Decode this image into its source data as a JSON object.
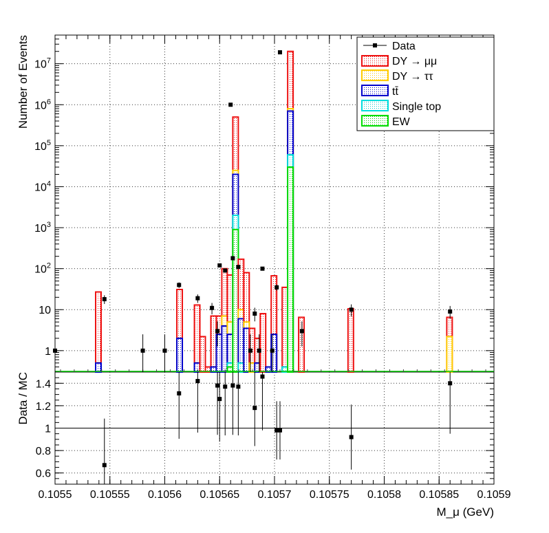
{
  "chart_data": {
    "type": "bar",
    "upper_panel": {
      "ylabel": "Number of Events",
      "yscale": "log",
      "ylim": [
        0.3,
        50000000
      ],
      "y_tick_labels": [
        "1",
        "10",
        "10^2",
        "10^3",
        "10^4",
        "10^5",
        "10^6",
        "10^7"
      ],
      "grid": true
    },
    "lower_panel": {
      "ylabel": "Data / MC",
      "ylim": [
        0.5,
        1.5
      ],
      "y_tick_labels": [
        "0.6",
        "0.8",
        "1",
        "1.2",
        "1.4"
      ],
      "reference_line": 1,
      "grid": true
    },
    "xlabel": "M_μ (GeV)",
    "xlim": [
      0.1055,
      0.1059
    ],
    "x_tick_labels": [
      "0.1055",
      "0.10555",
      "0.1056",
      "0.10565",
      "0.1057",
      "0.10575",
      "0.1058",
      "0.10585",
      "0.1059"
    ],
    "legend": {
      "placement": "top-right",
      "entries": [
        {
          "name": "Data",
          "style": "marker",
          "color": "#000000"
        },
        {
          "name": "DY → μμ",
          "style": "box",
          "color": "#ee1111"
        },
        {
          "name": "DY → ττ",
          "style": "box",
          "color": "#ffcc00"
        },
        {
          "name": "tt̄",
          "style": "box",
          "color": "#0000cc"
        },
        {
          "name": "Single top",
          "style": "box",
          "color": "#00dddd"
        },
        {
          "name": "EW",
          "style": "box",
          "color": "#00dd00"
        }
      ]
    },
    "stacks": [
      {
        "x0": 0.105537,
        "x1": 0.105542,
        "ew": 0,
        "st": 0,
        "tt": 0.5,
        "dytt": 0.5,
        "dymm": 27
      },
      {
        "x0": 0.105611,
        "x1": 0.105616,
        "ew": 0,
        "st": 0.3,
        "tt": 2.0,
        "dytt": 2.0,
        "dymm": 31
      },
      {
        "x0": 0.105627,
        "x1": 0.105632,
        "ew": 0,
        "st": 0,
        "tt": 0.5,
        "dytt": 0.5,
        "dymm": 13
      },
      {
        "x0": 0.105632,
        "x1": 0.105637,
        "ew": 0,
        "st": 0,
        "tt": 0,
        "dytt": 0,
        "dymm": 2.2
      },
      {
        "x0": 0.105637,
        "x1": 0.105642,
        "ew": 0,
        "st": 0,
        "tt": 0,
        "dytt": 0,
        "dymm": 0.4
      },
      {
        "x0": 0.105642,
        "x1": 0.105647,
        "ew": 0,
        "st": 0,
        "tt": 0.4,
        "dytt": 0.4,
        "dymm": 7
      },
      {
        "x0": 0.105647,
        "x1": 0.105652,
        "ew": 0,
        "st": 0,
        "tt": 2.5,
        "dytt": 2.5,
        "dymm": 7
      },
      {
        "x0": 0.105652,
        "x1": 0.105657,
        "ew": 0,
        "st": 0.3,
        "tt": 4,
        "dytt": 7,
        "dymm": 100
      },
      {
        "x0": 0.105657,
        "x1": 0.105662,
        "ew": 0.4,
        "st": 0.5,
        "tt": 2.5,
        "dytt": 5,
        "dymm": 70
      },
      {
        "x0": 0.105662,
        "x1": 0.105667,
        "ew": 900,
        "st": 2000,
        "tt": 20000,
        "dytt": 25000,
        "dymm": 500000
      },
      {
        "x0": 0.105667,
        "x1": 0.105672,
        "ew": 0,
        "st": 0.5,
        "tt": 6,
        "dytt": 10,
        "dymm": 170
      },
      {
        "x0": 0.105672,
        "x1": 0.105677,
        "ew": 0,
        "st": 0,
        "tt": 3.5,
        "dytt": 5,
        "dymm": 80
      },
      {
        "x0": 0.105677,
        "x1": 0.105682,
        "ew": 0,
        "st": 0,
        "tt": 0,
        "dytt": 0.5,
        "dymm": 3.5
      },
      {
        "x0": 0.105682,
        "x1": 0.105687,
        "ew": 0,
        "st": 0,
        "tt": 0.5,
        "dytt": 0.5,
        "dymm": 2
      },
      {
        "x0": 0.105687,
        "x1": 0.105692,
        "ew": 0,
        "st": 0,
        "tt": 0,
        "dytt": 0,
        "dymm": 8
      },
      {
        "x0": 0.105692,
        "x1": 0.105697,
        "ew": 0,
        "st": 0,
        "tt": 0.4,
        "dytt": 0.4,
        "dymm": 0.4
      },
      {
        "x0": 0.105697,
        "x1": 0.105702,
        "ew": 0.3,
        "st": 0.3,
        "tt": 2.5,
        "dytt": 2.5,
        "dymm": 67
      },
      {
        "x0": 0.105707,
        "x1": 0.105712,
        "ew": 0.3,
        "st": 0.4,
        "tt": 0.4,
        "dytt": 0.4,
        "dymm": 35
      },
      {
        "x0": 0.105712,
        "x1": 0.105717,
        "ew": 30000,
        "st": 60000,
        "tt": 700000,
        "dytt": 800000,
        "dymm": 20000000
      },
      {
        "x0": 0.105722,
        "x1": 0.105727,
        "ew": 0,
        "st": 0,
        "tt": 0,
        "dytt": 0,
        "dymm": 6.5
      },
      {
        "x0": 0.105767,
        "x1": 0.105772,
        "ew": 0,
        "st": 0,
        "tt": 0,
        "dytt": 0,
        "dymm": 10.5
      },
      {
        "x0": 0.105857,
        "x1": 0.105862,
        "ew": 0,
        "st": 0,
        "tt": 0,
        "dytt": 2.2,
        "dymm": 6.5
      }
    ],
    "data_points": [
      {
        "x": 0.1055,
        "y": 1
      },
      {
        "x": 0.105545,
        "y": 18
      },
      {
        "x": 0.10558,
        "y": 1
      },
      {
        "x": 0.1056,
        "y": 1
      },
      {
        "x": 0.105613,
        "y": 40
      },
      {
        "x": 0.10563,
        "y": 19
      },
      {
        "x": 0.105643,
        "y": 11
      },
      {
        "x": 0.105648,
        "y": 3
      },
      {
        "x": 0.10565,
        "y": 120
      },
      {
        "x": 0.105655,
        "y": 90
      },
      {
        "x": 0.10566,
        "y": 1000000
      },
      {
        "x": 0.105662,
        "y": 180
      },
      {
        "x": 0.105667,
        "y": 110
      },
      {
        "x": 0.105678,
        "y": 1
      },
      {
        "x": 0.105682,
        "y": 8
      },
      {
        "x": 0.105686,
        "y": 1
      },
      {
        "x": 0.105689,
        "y": 100
      },
      {
        "x": 0.105698,
        "y": 1
      },
      {
        "x": 0.105702,
        "y": 35
      },
      {
        "x": 0.105705,
        "y": 19000000
      },
      {
        "x": 0.105725,
        "y": 3
      },
      {
        "x": 0.10577,
        "y": 10
      },
      {
        "x": 0.10586,
        "y": 9
      }
    ],
    "ratio_points": [
      {
        "x": 0.105545,
        "y": 0.67
      },
      {
        "x": 0.105613,
        "y": 1.31
      },
      {
        "x": 0.10563,
        "y": 1.42
      },
      {
        "x": 0.105648,
        "y": 1.38
      },
      {
        "x": 0.10565,
        "y": 1.26
      },
      {
        "x": 0.105655,
        "y": 1.37
      },
      {
        "x": 0.105662,
        "y": 1.38
      },
      {
        "x": 0.105667,
        "y": 1.37
      },
      {
        "x": 0.105682,
        "y": 1.18
      },
      {
        "x": 0.105689,
        "y": 1.46
      },
      {
        "x": 0.105702,
        "y": 0.98
      },
      {
        "x": 0.105705,
        "y": 0.98
      },
      {
        "x": 0.10577,
        "y": 0.92
      },
      {
        "x": 0.10586,
        "y": 1.4
      }
    ]
  }
}
